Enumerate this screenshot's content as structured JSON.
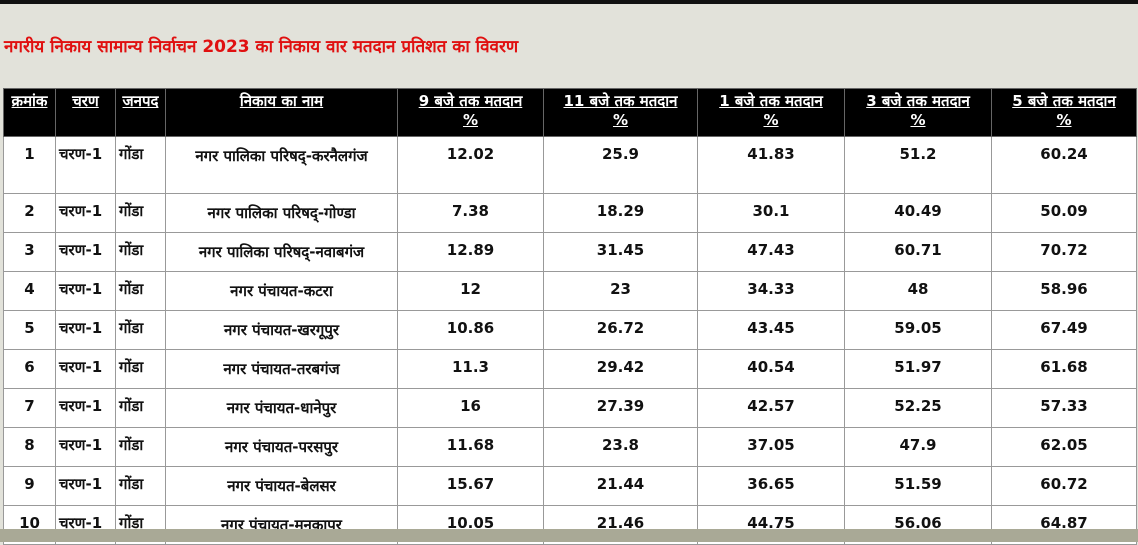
{
  "header": {
    "title": "नगरीय निकाय सामान्य निर्वाचन 2023 का निकाय वार मतदान प्रतिशत का विवरण"
  },
  "table": {
    "columns": [
      {
        "text": "क्रमांक"
      },
      {
        "text": "चरण"
      },
      {
        "text": "जनपद"
      },
      {
        "text": "निकाय का नाम"
      },
      {
        "text": "9 बजे तक मतदान",
        "unit": "%"
      },
      {
        "text": "11 बजे तक मतदान",
        "unit": "%"
      },
      {
        "text": "1 बजे तक मतदान",
        "unit": "%"
      },
      {
        "text": "3 बजे तक मतदान",
        "unit": "%"
      },
      {
        "text": "5 बजे तक मतदान",
        "unit": "%"
      }
    ],
    "rows": [
      [
        "1",
        "चरण-1",
        "गोंडा",
        "नगर पालिका परिषद्-करनैलगंज",
        "12.02",
        "25.9",
        "41.83",
        "51.2",
        "60.24"
      ],
      [
        "2",
        "चरण-1",
        "गोंडा",
        "नगर पालिका परिषद्-गोण्डा",
        "7.38",
        "18.29",
        "30.1",
        "40.49",
        "50.09"
      ],
      [
        "3",
        "चरण-1",
        "गोंडा",
        "नगर पालिका परिषद्-नवाबगंज",
        "12.89",
        "31.45",
        "47.43",
        "60.71",
        "70.72"
      ],
      [
        "4",
        "चरण-1",
        "गोंडा",
        "नगर पंचायत-कटरा",
        "12",
        "23",
        "34.33",
        "48",
        "58.96"
      ],
      [
        "5",
        "चरण-1",
        "गोंडा",
        "नगर पंचायत-खरगूपुर",
        "10.86",
        "26.72",
        "43.45",
        "59.05",
        "67.49"
      ],
      [
        "6",
        "चरण-1",
        "गोंडा",
        "नगर पंचायत-तरबगंज",
        "11.3",
        "29.42",
        "40.54",
        "51.97",
        "61.68"
      ],
      [
        "7",
        "चरण-1",
        "गोंडा",
        "नगर पंचायत-धानेपुर",
        "16",
        "27.39",
        "42.57",
        "52.25",
        "57.33"
      ],
      [
        "8",
        "चरण-1",
        "गोंडा",
        "नगर पंचायत-परसपुर",
        "11.68",
        "23.8",
        "37.05",
        "47.9",
        "62.05"
      ],
      [
        "9",
        "चरण-1",
        "गोंडा",
        "नगर पंचायत-बेलसर",
        "15.67",
        "21.44",
        "36.65",
        "51.59",
        "60.72"
      ],
      [
        "10",
        "चरण-1",
        "गोंडा",
        "नगर पंचायत-मनकापुर",
        "10.05",
        "21.46",
        "44.75",
        "56.06",
        "64.87"
      ]
    ]
  }
}
